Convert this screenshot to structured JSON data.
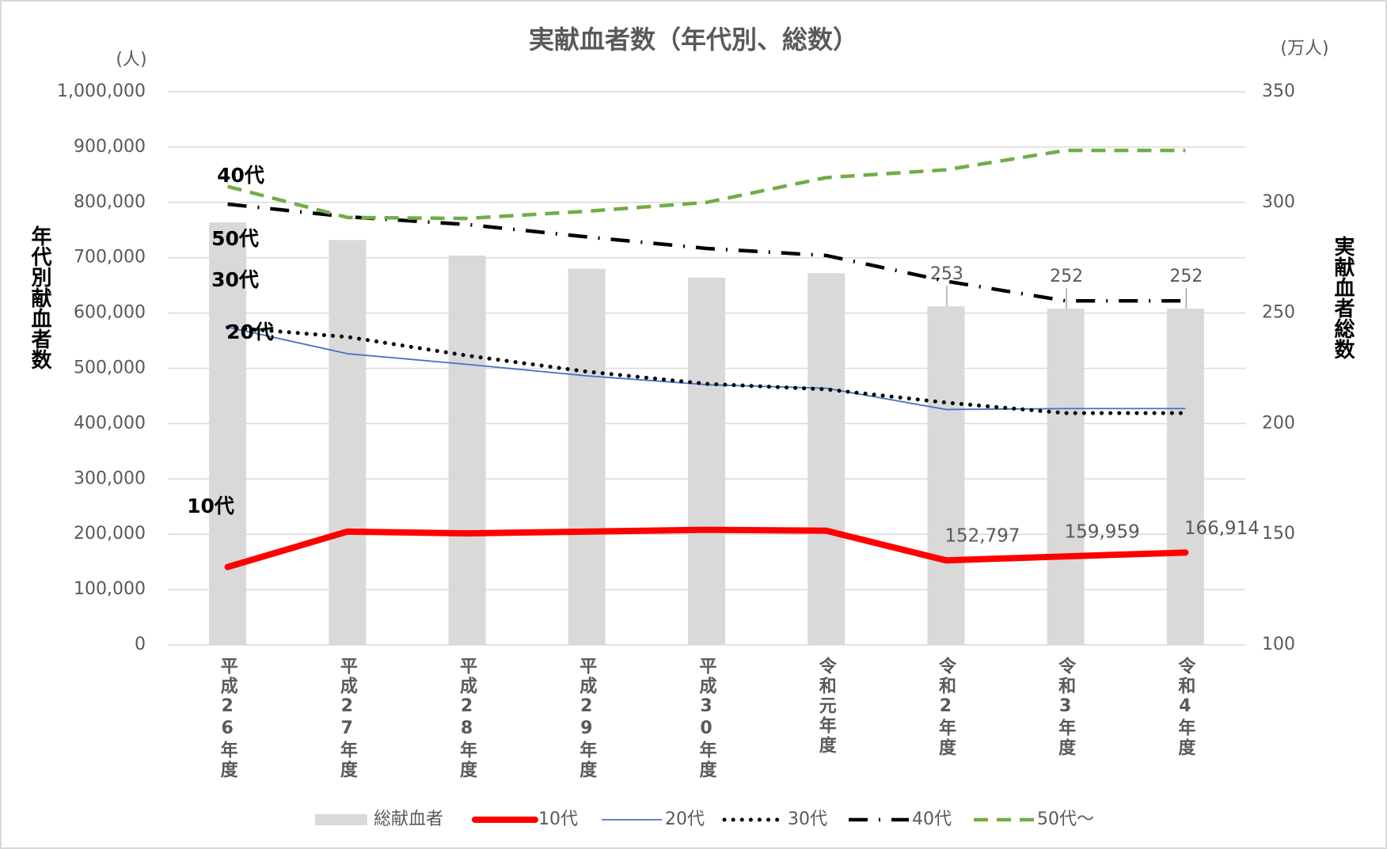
{
  "chart_data": {
    "type": "bar-line",
    "title": "実献血者数（年代別、総数）",
    "y_label": "年代別献血者数",
    "y_unit": "(人)",
    "y2_label": "実献血者総数",
    "y2_unit": "(万人)",
    "categories": [
      "平成26年度",
      "平成27年度",
      "平成28年度",
      "平成29年度",
      "平成30年度",
      "令和元年度",
      "令和2年度",
      "令和3年度",
      "令和4年度"
    ],
    "ylim": [
      0,
      1000000
    ],
    "yticks": [
      0,
      {
        "value": 100000,
        "label": "100,000"
      },
      {
        "value": 200000,
        "label": "200,000"
      },
      {
        "value": 300000,
        "label": "300,000"
      },
      {
        "value": 400000,
        "label": "400,000"
      },
      {
        "value": 500000,
        "label": "500,000"
      },
      {
        "value": 600000,
        "label": "600,000"
      },
      {
        "value": 700000,
        "label": "700,000"
      },
      {
        "value": 800000,
        "label": "800,000"
      },
      {
        "value": 900000,
        "label": "900,000"
      },
      {
        "value": 1000000,
        "label": "1,000,000"
      }
    ],
    "y2lim": [
      100,
      350
    ],
    "y2ticks": [
      100,
      150,
      200,
      250,
      300,
      350
    ],
    "grid": true,
    "series": [
      {
        "name": "総献血者",
        "kind": "bar",
        "axis": "y2",
        "color": "#d9d9d9",
        "values": [
          291,
          283,
          276,
          270,
          266,
          268,
          253,
          252,
          252
        ],
        "value_labels": [
          null,
          null,
          null,
          null,
          null,
          null,
          "253",
          "252",
          "252"
        ]
      },
      {
        "name": "10代",
        "kind": "line",
        "color": "#ff0000",
        "values": [
          140800,
          204800,
          201600,
          204800,
          208000,
          206400,
          152797,
          159959,
          166914
        ],
        "value_labels": [
          null,
          null,
          null,
          null,
          null,
          null,
          "152,797",
          "159,959",
          "166,914"
        ]
      },
      {
        "name": "20代",
        "kind": "line",
        "color": "#4472c4",
        "values": [
          574400,
          526400,
          507200,
          486400,
          470400,
          464000,
          425600,
          427200,
          427200
        ]
      },
      {
        "name": "30代",
        "kind": "line",
        "color": "#000000",
        "values": [
          574000,
          556800,
          523000,
          494000,
          472000,
          462000,
          438000,
          419000,
          419000
        ]
      },
      {
        "name": "40代",
        "kind": "line",
        "color": "#000000",
        "values": [
          796800,
          774000,
          760000,
          737600,
          716800,
          704000,
          657600,
          622000,
          622000
        ]
      },
      {
        "name": "50代～",
        "kind": "line",
        "color": "#70ad47",
        "values": [
          828800,
          772800,
          771000,
          784000,
          800000,
          844800,
          859000,
          894000,
          894000
        ]
      }
    ],
    "annotations": [
      "40代",
      "50代",
      "30代",
      "20代",
      "10代"
    ]
  }
}
